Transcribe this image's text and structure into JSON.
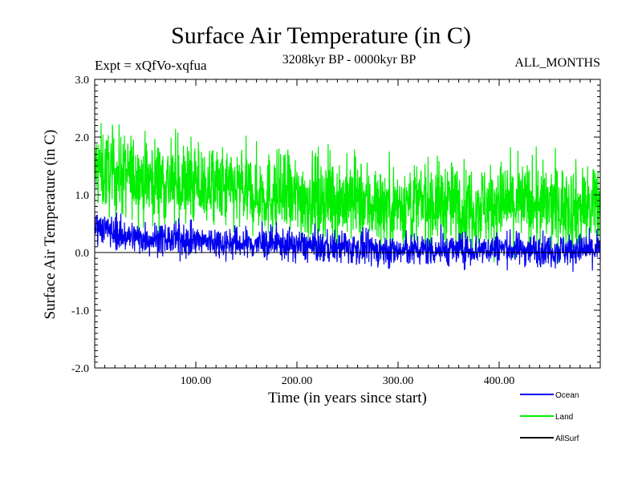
{
  "chart_data": {
    "type": "line",
    "title": "Surface Air Temperature (in C)",
    "subtitle_left": "Expt = xQfVo-xqfua",
    "subtitle_center": "3208kyr BP - 0000kyr BP",
    "subtitle_right": "ALL_MONTHS",
    "xlabel": "Time (in years since start)",
    "ylabel": "Surface Air Temperature (in C)",
    "xlim": [
      0,
      500
    ],
    "ylim": [
      -2.0,
      3.0
    ],
    "x_ticks": [
      100,
      200,
      300,
      400
    ],
    "x_tick_labels": [
      "100.00",
      "200.00",
      "300.00",
      "400.00"
    ],
    "y_ticks": [
      -2.0,
      -1.0,
      0.0,
      1.0,
      2.0,
      3.0
    ],
    "y_tick_labels": [
      "-2.0",
      "-1.0",
      "0.0",
      "1.0",
      "2.0",
      "3.0"
    ],
    "zero_line": 0.0,
    "legend_position": "bottom-right",
    "series": [
      {
        "name": "Land",
        "color": "#00ee00",
        "x": [
          0,
          25,
          50,
          75,
          100,
          125,
          150,
          175,
          200,
          225,
          250,
          275,
          300,
          325,
          350,
          375,
          400,
          425,
          450,
          475,
          500
        ],
        "mean": [
          1.45,
          1.35,
          1.3,
          1.2,
          1.15,
          1.1,
          1.05,
          1.0,
          0.95,
          0.95,
          0.9,
          0.85,
          0.8,
          0.85,
          0.85,
          0.8,
          0.85,
          0.85,
          0.8,
          0.8,
          0.75
        ],
        "spread": 0.65
      },
      {
        "name": "Ocean",
        "color": "#0000ee",
        "x": [
          0,
          25,
          50,
          75,
          100,
          125,
          150,
          175,
          200,
          225,
          250,
          275,
          300,
          325,
          350,
          375,
          400,
          425,
          450,
          475,
          500
        ],
        "mean": [
          0.5,
          0.3,
          0.25,
          0.22,
          0.2,
          0.18,
          0.15,
          0.15,
          0.12,
          0.1,
          0.08,
          0.05,
          0.02,
          0.05,
          0.05,
          0.05,
          0.08,
          0.05,
          0.05,
          0.05,
          0.05
        ],
        "spread": 0.25
      },
      {
        "name": "AllSurf",
        "color": "#000000",
        "x": [
          0,
          500
        ],
        "mean": [
          0.0,
          0.0
        ],
        "spread": 0.0
      }
    ]
  }
}
